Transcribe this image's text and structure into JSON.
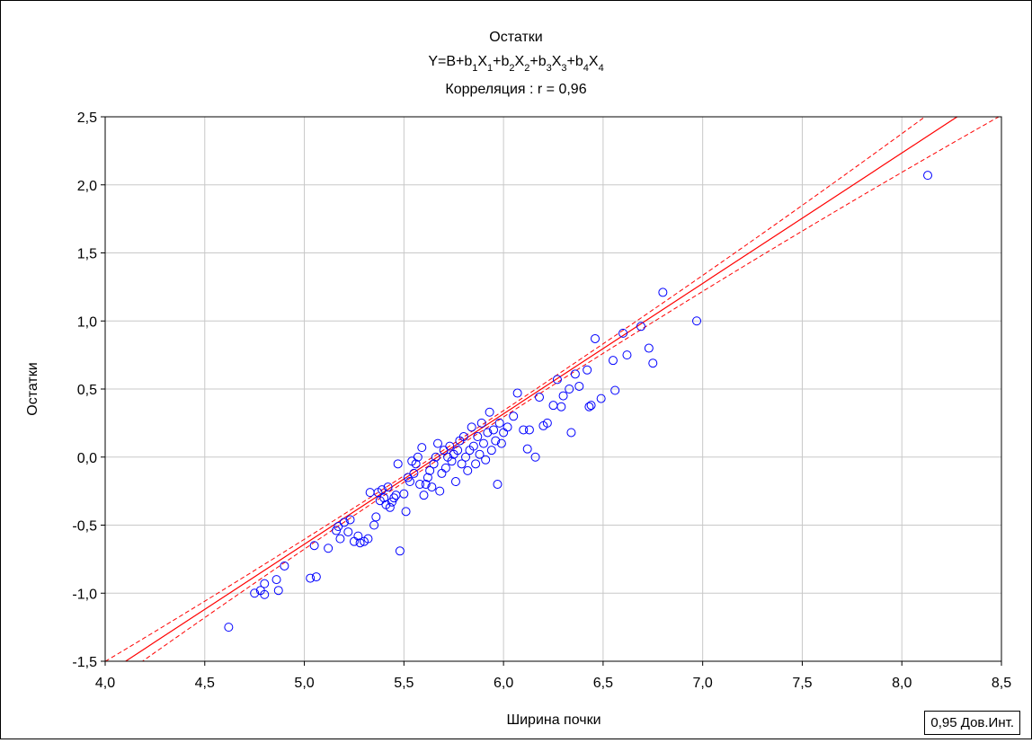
{
  "chart_data": {
    "type": "scatter",
    "title": "Остатки",
    "equation": {
      "prefix": "Y=B+",
      "terms": [
        {
          "coef": "b",
          "coef_sub": "1",
          "var": "X",
          "var_sub": "1"
        },
        {
          "coef": "b",
          "coef_sub": "2",
          "var": "X",
          "var_sub": "2"
        },
        {
          "coef": "b",
          "coef_sub": "3",
          "var": "X",
          "var_sub": "3"
        },
        {
          "coef": "b",
          "coef_sub": "4",
          "var": "X",
          "var_sub": "4"
        }
      ]
    },
    "correlation_label": "Корреляция : r = 0,96",
    "xlabel": "Ширина почки",
    "ylabel": "Остатки",
    "xlim": [
      4.0,
      8.5
    ],
    "ylim": [
      -1.5,
      2.5
    ],
    "x_ticks": [
      "4,0",
      "4,5",
      "5,0",
      "5,5",
      "6,0",
      "6,5",
      "7,0",
      "7,5",
      "8,0",
      "8,5"
    ],
    "y_ticks": [
      "2,5",
      "2,0",
      "1,5",
      "1,0",
      "0,5",
      "0,0",
      "-0,5",
      "-1,0",
      "-1,5"
    ],
    "grid": true,
    "point_color": "#0000ff",
    "line_color": "#ff0000",
    "fit": {
      "slope": 0.958,
      "intercept": -5.43
    },
    "legend": "0,95 Дов.Инт.",
    "legend_position": "bottom-right",
    "points": [
      [
        4.62,
        -1.25
      ],
      [
        4.75,
        -1.0
      ],
      [
        4.78,
        -0.98
      ],
      [
        4.8,
        -1.01
      ],
      [
        4.8,
        -0.93
      ],
      [
        4.86,
        -0.9
      ],
      [
        4.87,
        -0.98
      ],
      [
        4.9,
        -0.8
      ],
      [
        5.03,
        -0.89
      ],
      [
        5.06,
        -0.88
      ],
      [
        5.05,
        -0.65
      ],
      [
        5.12,
        -0.67
      ],
      [
        5.16,
        -0.54
      ],
      [
        5.17,
        -0.51
      ],
      [
        5.18,
        -0.6
      ],
      [
        5.2,
        -0.48
      ],
      [
        5.22,
        -0.55
      ],
      [
        5.23,
        -0.46
      ],
      [
        5.25,
        -0.62
      ],
      [
        5.27,
        -0.58
      ],
      [
        5.28,
        -0.63
      ],
      [
        5.3,
        -0.62
      ],
      [
        5.32,
        -0.6
      ],
      [
        5.33,
        -0.26
      ],
      [
        5.35,
        -0.5
      ],
      [
        5.36,
        -0.44
      ],
      [
        5.37,
        -0.26
      ],
      [
        5.38,
        -0.32
      ],
      [
        5.39,
        -0.24
      ],
      [
        5.4,
        -0.3
      ],
      [
        5.41,
        -0.35
      ],
      [
        5.42,
        -0.22
      ],
      [
        5.43,
        -0.37
      ],
      [
        5.44,
        -0.33
      ],
      [
        5.45,
        -0.3
      ],
      [
        5.46,
        -0.28
      ],
      [
        5.47,
        -0.05
      ],
      [
        5.48,
        -0.69
      ],
      [
        5.5,
        -0.27
      ],
      [
        5.51,
        -0.4
      ],
      [
        5.52,
        -0.15
      ],
      [
        5.53,
        -0.18
      ],
      [
        5.54,
        -0.03
      ],
      [
        5.55,
        -0.12
      ],
      [
        5.56,
        -0.05
      ],
      [
        5.57,
        0.0
      ],
      [
        5.58,
        -0.2
      ],
      [
        5.59,
        0.07
      ],
      [
        5.6,
        -0.28
      ],
      [
        5.61,
        -0.2
      ],
      [
        5.62,
        -0.15
      ],
      [
        5.63,
        -0.1
      ],
      [
        5.64,
        -0.22
      ],
      [
        5.65,
        -0.05
      ],
      [
        5.66,
        0.0
      ],
      [
        5.67,
        0.1
      ],
      [
        5.68,
        -0.25
      ],
      [
        5.69,
        -0.12
      ],
      [
        5.7,
        0.05
      ],
      [
        5.71,
        -0.08
      ],
      [
        5.72,
        0.0
      ],
      [
        5.73,
        0.08
      ],
      [
        5.74,
        -0.03
      ],
      [
        5.75,
        0.02
      ],
      [
        5.76,
        -0.18
      ],
      [
        5.77,
        0.05
      ],
      [
        5.78,
        0.12
      ],
      [
        5.79,
        -0.05
      ],
      [
        5.8,
        0.15
      ],
      [
        5.81,
        0.0
      ],
      [
        5.82,
        -0.1
      ],
      [
        5.83,
        0.05
      ],
      [
        5.84,
        0.22
      ],
      [
        5.85,
        0.08
      ],
      [
        5.86,
        -0.05
      ],
      [
        5.87,
        0.15
      ],
      [
        5.88,
        0.02
      ],
      [
        5.89,
        0.25
      ],
      [
        5.9,
        0.1
      ],
      [
        5.91,
        -0.02
      ],
      [
        5.92,
        0.18
      ],
      [
        5.93,
        0.33
      ],
      [
        5.94,
        0.05
      ],
      [
        5.95,
        0.2
      ],
      [
        5.96,
        0.12
      ],
      [
        5.97,
        -0.2
      ],
      [
        5.98,
        0.25
      ],
      [
        5.99,
        0.1
      ],
      [
        6.0,
        0.18
      ],
      [
        6.02,
        0.22
      ],
      [
        6.05,
        0.3
      ],
      [
        6.07,
        0.47
      ],
      [
        6.1,
        0.2
      ],
      [
        6.12,
        0.06
      ],
      [
        6.13,
        0.2
      ],
      [
        6.16,
        0.0
      ],
      [
        6.18,
        0.44
      ],
      [
        6.2,
        0.23
      ],
      [
        6.22,
        0.25
      ],
      [
        6.25,
        0.38
      ],
      [
        6.27,
        0.57
      ],
      [
        6.29,
        0.37
      ],
      [
        6.3,
        0.45
      ],
      [
        6.33,
        0.5
      ],
      [
        6.34,
        0.18
      ],
      [
        6.36,
        0.61
      ],
      [
        6.38,
        0.52
      ],
      [
        6.42,
        0.64
      ],
      [
        6.43,
        0.37
      ],
      [
        6.44,
        0.38
      ],
      [
        6.46,
        0.87
      ],
      [
        6.49,
        0.43
      ],
      [
        6.55,
        0.71
      ],
      [
        6.56,
        0.49
      ],
      [
        6.6,
        0.91
      ],
      [
        6.62,
        0.75
      ],
      [
        6.69,
        0.96
      ],
      [
        6.73,
        0.8
      ],
      [
        6.75,
        0.69
      ],
      [
        6.8,
        1.21
      ],
      [
        6.97,
        1.0
      ],
      [
        8.13,
        2.07
      ]
    ]
  }
}
